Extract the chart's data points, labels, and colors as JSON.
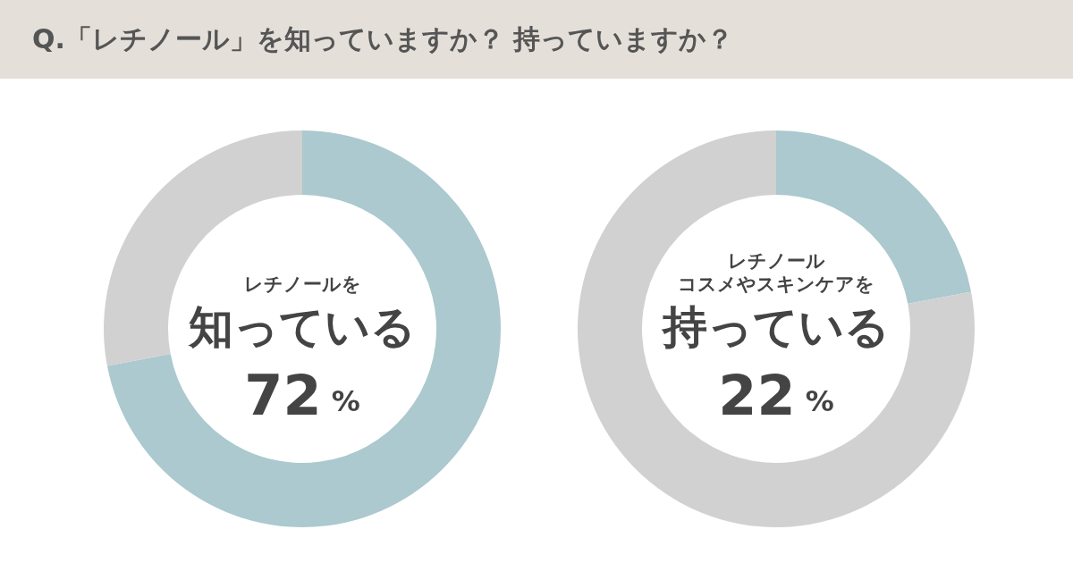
{
  "chart_data": [
    {
      "type": "donut",
      "title": "Q.「レチノール」を知っていますか？ 持っていますか？",
      "categories": [
        null,
        null
      ],
      "values": [
        72,
        28
      ],
      "colors": [
        "#abc9ce",
        "#d1d1d1"
      ],
      "annotations": [
        "レチノールを",
        "知っている",
        "72 %"
      ]
    },
    {
      "type": "donut",
      "categories": [
        null,
        null
      ],
      "values": [
        22,
        78
      ],
      "colors": [
        "#abc9ce",
        "#d1d1d1"
      ],
      "annotations": [
        "レチノール",
        "コスメやスキンケアを",
        "持っている",
        "22 %"
      ]
    }
  ]
}
